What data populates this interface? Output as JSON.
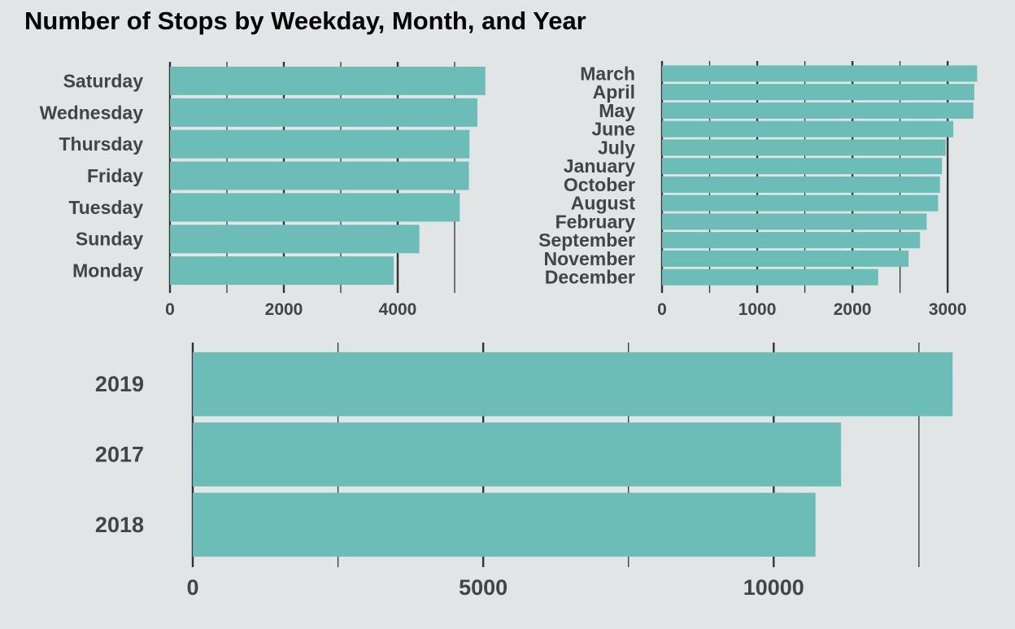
{
  "title": "Number of Stops by Weekday, Month, and Year",
  "colors": {
    "background": "#e2e5e6",
    "bar": "#6cbcb7",
    "grid": "#333333",
    "text": "#444444"
  },
  "chart_data": [
    {
      "type": "bar",
      "orientation": "horizontal",
      "categories": [
        "Saturday",
        "Wednesday",
        "Thursday",
        "Friday",
        "Tuesday",
        "Sunday",
        "Monday"
      ],
      "values": [
        5540,
        5400,
        5260,
        5250,
        5090,
        4380,
        3930
      ],
      "xlim": [
        0,
        5800
      ],
      "xticks": [
        0,
        2000,
        4000
      ],
      "minor_gridlines": [
        1000,
        3000,
        5000
      ],
      "title": "",
      "xlabel": "",
      "ylabel": "",
      "grid": true
    },
    {
      "type": "bar",
      "orientation": "horizontal",
      "categories": [
        "March",
        "April",
        "May",
        "June",
        "July",
        "January",
        "October",
        "August",
        "February",
        "September",
        "November",
        "December"
      ],
      "values": [
        3310,
        3280,
        3270,
        3060,
        2980,
        2940,
        2920,
        2900,
        2780,
        2710,
        2590,
        2270
      ],
      "xlim": [
        0,
        3400
      ],
      "xticks": [
        0,
        1000,
        2000,
        3000
      ],
      "minor_gridlines": [
        500,
        1500,
        2500
      ],
      "title": "",
      "xlabel": "",
      "ylabel": "",
      "grid": true
    },
    {
      "type": "bar",
      "orientation": "horizontal",
      "categories": [
        "2019",
        "2017",
        "2018"
      ],
      "values": [
        13080,
        11160,
        10720
      ],
      "xlim": [
        0,
        13300
      ],
      "xticks": [
        0,
        5000,
        10000
      ],
      "minor_gridlines": [
        2500,
        7500,
        12500
      ],
      "title": "",
      "xlabel": "",
      "ylabel": "",
      "grid": true
    }
  ]
}
